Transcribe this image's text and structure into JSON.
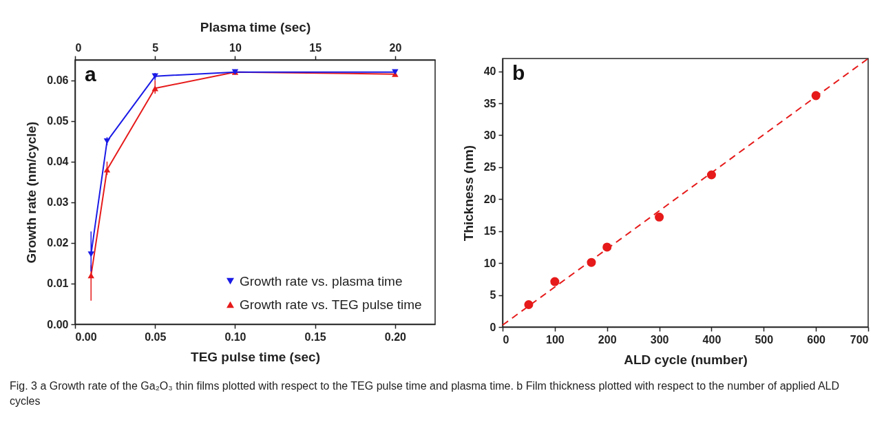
{
  "chart_data": [
    {
      "type": "line",
      "xlabel": "TEG pulse time (sec)",
      "x2label": "Plasma time (sec)",
      "ylabel": "Growth rate (nm/cycle)",
      "xlim": [
        0,
        0.225
      ],
      "xticks": [
        {
          "value": 0,
          "label": "0.00"
        },
        0.05,
        {
          "value": 0.1,
          "label": "0.10"
        },
        0.15,
        {
          "value": 0.2,
          "label": "0.20"
        }
      ],
      "x2lim": [
        0,
        22.5
      ],
      "x2ticks": [
        0,
        5,
        10,
        15,
        20
      ],
      "ylim": [
        0,
        0.065
      ],
      "yticks": [
        {
          "value": 0,
          "label": "0.00"
        },
        0.01,
        0.02,
        0.03,
        0.04,
        0.05,
        0.06
      ],
      "legend": "bottom right",
      "grid": false,
      "annotations": [
        "a",
        "Fig. 3 a Growth rate of the Ga₂O₃ thin films plotted with respect to the TEG pulse time and plasma time. b Film thickness plotted with respect to the number of applied ALD cycles"
      ],
      "series": [
        {
          "name": "Growth rate vs. plasma time",
          "color": "#1a1ae6",
          "axis": "x2",
          "marker": "triangle-down",
          "x": [
            1,
            2,
            5,
            10,
            20
          ],
          "values": [
            0.0172,
            0.045,
            0.061,
            0.062,
            0.062
          ],
          "errors": [
            [
              0.013,
              0.0228
            ],
            [
              0.044,
              0.046
            ],
            [
              0.06,
              0.0618
            ],
            null,
            null
          ]
        },
        {
          "name": "Growth rate vs. TEG pulse time",
          "color": "#e61a1a",
          "marker": "triangle",
          "x": [
            0.01,
            0.02,
            0.05,
            0.1,
            0.2
          ],
          "values": [
            0.012,
            0.038,
            0.058,
            0.062,
            0.0615
          ],
          "errors": [
            [
              0.0058,
              0.0145
            ],
            [
              0.0367,
              0.04
            ],
            [
              0.0567,
              0.06
            ],
            null,
            [
              0.061,
              0.062
            ]
          ]
        }
      ]
    },
    {
      "type": "scatter",
      "xlabel": "ALD cycle (number)",
      "ylabel": "Thickness (nm)",
      "xlim": [
        0,
        700
      ],
      "xticks": [
        0,
        100,
        200,
        300,
        400,
        500,
        600,
        700
      ],
      "ylim": [
        0,
        42
      ],
      "yticks": [
        0,
        5,
        10,
        15,
        20,
        25,
        30,
        35,
        40
      ],
      "grid": false,
      "annotations": [
        "b"
      ],
      "series": [
        {
          "color": "#e61a1a",
          "marker": "circle",
          "x": [
            50,
            100,
            170,
            200,
            300,
            400,
            600
          ],
          "values": [
            3.5,
            7.1,
            10.1,
            12.5,
            17.2,
            23.8,
            36.2
          ]
        },
        {
          "type": "line",
          "color": "#e61a1a",
          "line_style": "dashed",
          "marker": "none",
          "x": [
            0,
            700
          ],
          "values": [
            0.3,
            42
          ]
        }
      ]
    }
  ]
}
